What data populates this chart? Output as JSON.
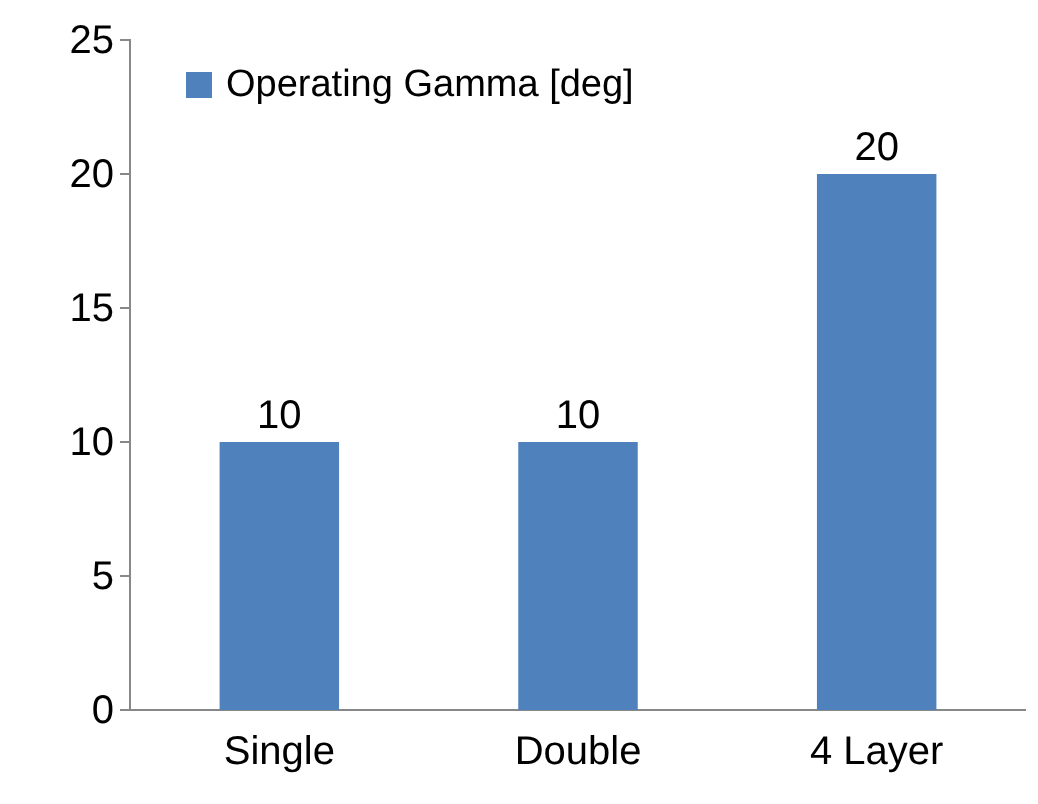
{
  "chart_data": {
    "type": "bar",
    "categories": [
      "Single",
      "Double",
      "4 Layer"
    ],
    "series": [
      {
        "name": "Operating Gamma [deg]",
        "color": "#4f81bd",
        "values": [
          10,
          10,
          20
        ]
      }
    ],
    "ylim": [
      0,
      25
    ],
    "yticks": [
      0,
      5,
      10,
      15,
      20,
      25
    ],
    "grid": false,
    "legend": "top left",
    "data_labels": true
  }
}
